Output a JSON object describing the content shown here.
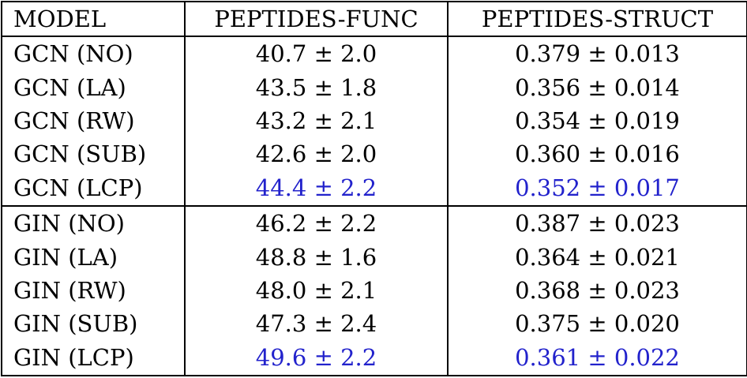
{
  "colors": {
    "highlight": "#2222cc",
    "text": "#000000",
    "border": "#000000",
    "background": "#ffffff"
  },
  "table": {
    "columns": [
      {
        "label": "MODEL"
      },
      {
        "label": "PEPTIDES-FUNC"
      },
      {
        "label": "PEPTIDES-STRUCT"
      }
    ],
    "rows": [
      {
        "model": "GCN (NO)",
        "func": "40.7 ± 2.0",
        "struct": "0.379 ± 0.013",
        "highlighted": false
      },
      {
        "model": "GCN (LA)",
        "func": "43.5 ± 1.8",
        "struct": "0.356 ± 0.014",
        "highlighted": false
      },
      {
        "model": "GCN (RW)",
        "func": "43.2 ± 2.1",
        "struct": "0.354 ± 0.019",
        "highlighted": false
      },
      {
        "model": "GCN (SUB)",
        "func": "42.6 ± 2.0",
        "struct": "0.360 ± 0.016",
        "highlighted": false
      },
      {
        "model": "GCN (LCP)",
        "func": "44.4 ± 2.2",
        "struct": "0.352 ± 0.017",
        "highlighted": true
      },
      {
        "model": "GIN (NO)",
        "func": "46.2 ± 2.2",
        "struct": "0.387 ± 0.023",
        "highlighted": false
      },
      {
        "model": "GIN (LA)",
        "func": "48.8 ± 1.6",
        "struct": "0.364 ± 0.021",
        "highlighted": false
      },
      {
        "model": "GIN (RW)",
        "func": "48.0 ± 2.1",
        "struct": "0.368 ± 0.023",
        "highlighted": false
      },
      {
        "model": "GIN (SUB)",
        "func": "47.3 ± 2.4",
        "struct": "0.375 ± 0.020",
        "highlighted": false
      },
      {
        "model": "GIN (LCP)",
        "func": "49.6 ± 2.2",
        "struct": "0.361 ± 0.022",
        "highlighted": true
      }
    ]
  },
  "chart_data": {
    "type": "table",
    "title": "",
    "columns": [
      "MODEL",
      "PEPTIDES-FUNC",
      "PEPTIDES-STRUCT"
    ],
    "rows": [
      {
        "model": "GCN (NO)",
        "peptides_func_mean": 40.7,
        "peptides_func_std": 2.0,
        "peptides_struct_mean": 0.379,
        "peptides_struct_std": 0.013,
        "highlighted": false
      },
      {
        "model": "GCN (LA)",
        "peptides_func_mean": 43.5,
        "peptides_func_std": 1.8,
        "peptides_struct_mean": 0.356,
        "peptides_struct_std": 0.014,
        "highlighted": false
      },
      {
        "model": "GCN (RW)",
        "peptides_func_mean": 43.2,
        "peptides_func_std": 2.1,
        "peptides_struct_mean": 0.354,
        "peptides_struct_std": 0.019,
        "highlighted": false
      },
      {
        "model": "GCN (SUB)",
        "peptides_func_mean": 42.6,
        "peptides_func_std": 2.0,
        "peptides_struct_mean": 0.36,
        "peptides_struct_std": 0.016,
        "highlighted": false
      },
      {
        "model": "GCN (LCP)",
        "peptides_func_mean": 44.4,
        "peptides_func_std": 2.2,
        "peptides_struct_mean": 0.352,
        "peptides_struct_std": 0.017,
        "highlighted": true
      },
      {
        "model": "GIN (NO)",
        "peptides_func_mean": 46.2,
        "peptides_func_std": 2.2,
        "peptides_struct_mean": 0.387,
        "peptides_struct_std": 0.023,
        "highlighted": false
      },
      {
        "model": "GIN (LA)",
        "peptides_func_mean": 48.8,
        "peptides_func_std": 1.6,
        "peptides_struct_mean": 0.364,
        "peptides_struct_std": 0.021,
        "highlighted": false
      },
      {
        "model": "GIN (RW)",
        "peptides_func_mean": 48.0,
        "peptides_func_std": 2.1,
        "peptides_struct_mean": 0.368,
        "peptides_struct_std": 0.023,
        "highlighted": false
      },
      {
        "model": "GIN (SUB)",
        "peptides_func_mean": 47.3,
        "peptides_func_std": 2.4,
        "peptides_struct_mean": 0.375,
        "peptides_struct_std": 0.02,
        "highlighted": false
      },
      {
        "model": "GIN (LCP)",
        "peptides_func_mean": 49.6,
        "peptides_func_std": 2.2,
        "peptides_struct_mean": 0.361,
        "peptides_struct_std": 0.022,
        "highlighted": true
      }
    ],
    "layout_hints": {
      "highlight_color_meaning": "best result per group shown in blue",
      "groups": [
        "GCN",
        "GIN"
      ],
      "group_separator_after_row": 4
    }
  }
}
